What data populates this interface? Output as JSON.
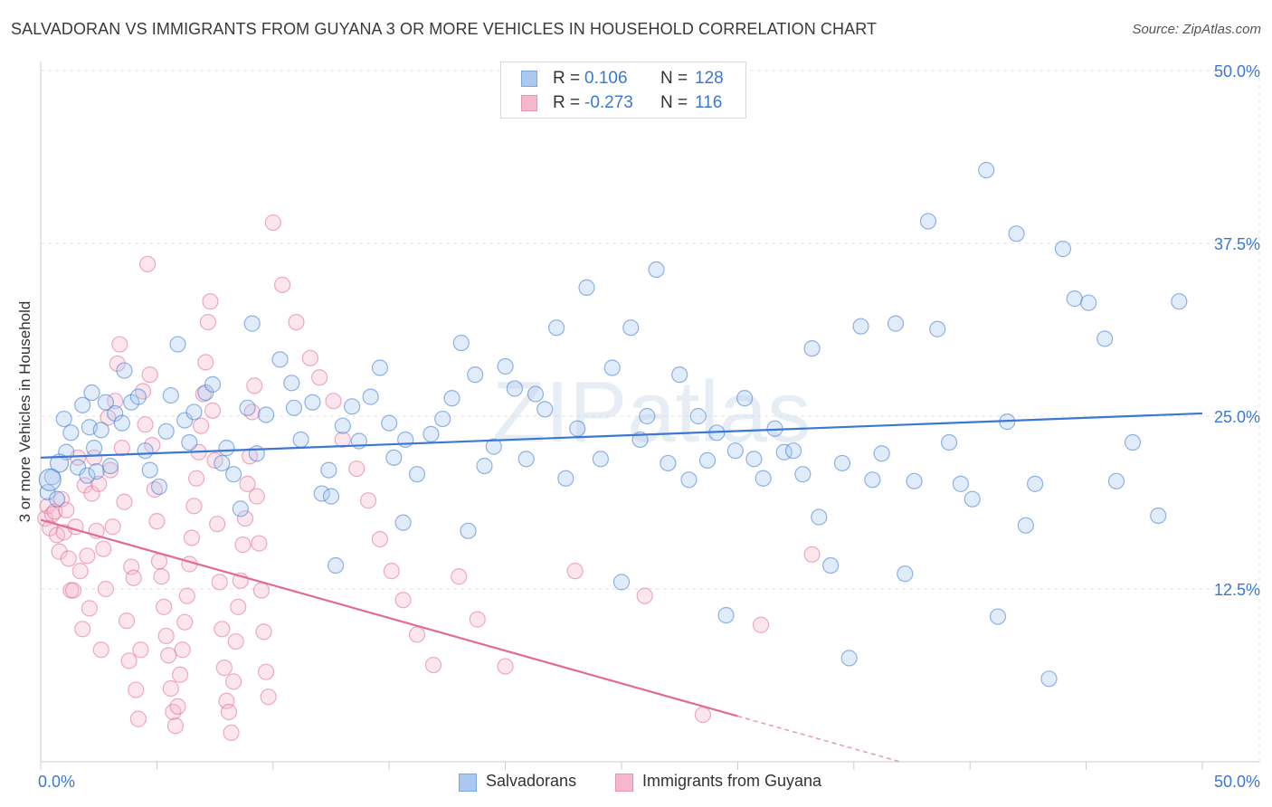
{
  "title": "SALVADORAN VS IMMIGRANTS FROM GUYANA 3 OR MORE VEHICLES IN HOUSEHOLD CORRELATION CHART",
  "source": "Source: ZipAtlas.com",
  "watermark": "ZIPatlas",
  "colors": {
    "blue": "#3b78d4",
    "blue_fill": "#aac8f0",
    "pink": "#e46a96",
    "pink_fill": "#f5b7cc",
    "grid": "#e3e3e3",
    "tick_label": "#3b78d4"
  },
  "legend": {
    "series1": {
      "r_label": "R =",
      "r_value": "0.106",
      "n_label": "N =",
      "n_value": "128"
    },
    "series2": {
      "r_label": "R =",
      "r_value": "-0.273",
      "n_label": "N =",
      "n_value": "116"
    }
  },
  "bottom_legend": {
    "series1": "Salvadorans",
    "series2": "Immigrants from Guyana"
  },
  "chart_data": {
    "type": "scatter",
    "title": "SALVADORAN VS IMMIGRANTS FROM GUYANA 3 OR MORE VEHICLES IN HOUSEHOLD CORRELATION CHART",
    "xlabel": "",
    "ylabel": "3 or more Vehicles in Household",
    "xlim": [
      0,
      50
    ],
    "ylim": [
      0,
      50
    ],
    "x_tick_labels": [
      "0.0%",
      "50.0%"
    ],
    "y_ticks": [
      12.5,
      25.0,
      37.5,
      50.0
    ],
    "y_tick_labels": [
      "12.5%",
      "25.0%",
      "37.5%",
      "50.0%"
    ],
    "grid": true,
    "legend_position": "top-center",
    "series": [
      {
        "name": "Salvadorans",
        "r": 0.106,
        "n": 128,
        "trend": {
          "x": [
            0,
            50
          ],
          "y": [
            22.0,
            25.2
          ]
        },
        "points": [
          [
            0.3,
            19.5
          ],
          [
            0.5,
            20.6
          ],
          [
            0.7,
            19.0
          ],
          [
            1.0,
            24.8
          ],
          [
            1.1,
            22.4
          ],
          [
            1.3,
            23.8
          ],
          [
            1.6,
            21.3
          ],
          [
            1.8,
            25.8
          ],
          [
            2.0,
            20.7
          ],
          [
            2.1,
            24.2
          ],
          [
            2.2,
            26.7
          ],
          [
            2.3,
            22.7
          ],
          [
            2.4,
            21.0
          ],
          [
            2.6,
            24.0
          ],
          [
            2.8,
            26.0
          ],
          [
            3.0,
            21.4
          ],
          [
            3.2,
            25.2
          ],
          [
            3.5,
            24.5
          ],
          [
            3.6,
            28.3
          ],
          [
            3.9,
            26.0
          ],
          [
            4.2,
            26.4
          ],
          [
            4.5,
            22.5
          ],
          [
            4.7,
            21.1
          ],
          [
            5.1,
            19.9
          ],
          [
            5.4,
            23.9
          ],
          [
            5.6,
            26.5
          ],
          [
            5.9,
            30.2
          ],
          [
            6.2,
            24.7
          ],
          [
            6.4,
            23.1
          ],
          [
            6.6,
            25.3
          ],
          [
            7.1,
            26.7
          ],
          [
            7.4,
            27.3
          ],
          [
            7.8,
            21.6
          ],
          [
            8.0,
            22.7
          ],
          [
            8.3,
            20.8
          ],
          [
            8.6,
            18.3
          ],
          [
            8.9,
            25.6
          ],
          [
            9.1,
            31.7
          ],
          [
            9.3,
            22.3
          ],
          [
            9.7,
            25.1
          ],
          [
            10.3,
            29.1
          ],
          [
            10.8,
            27.4
          ],
          [
            10.9,
            25.6
          ],
          [
            11.2,
            23.3
          ],
          [
            11.7,
            26.0
          ],
          [
            12.1,
            19.4
          ],
          [
            12.4,
            21.1
          ],
          [
            12.5,
            19.2
          ],
          [
            12.7,
            14.2
          ],
          [
            13.0,
            24.3
          ],
          [
            13.4,
            25.7
          ],
          [
            13.7,
            23.2
          ],
          [
            14.2,
            26.4
          ],
          [
            14.6,
            28.5
          ],
          [
            15.0,
            24.5
          ],
          [
            15.2,
            22.0
          ],
          [
            15.6,
            17.3
          ],
          [
            15.7,
            23.3
          ],
          [
            16.2,
            20.8
          ],
          [
            16.8,
            23.7
          ],
          [
            17.3,
            24.8
          ],
          [
            17.7,
            26.3
          ],
          [
            18.1,
            30.3
          ],
          [
            18.4,
            16.7
          ],
          [
            18.7,
            28.0
          ],
          [
            19.1,
            21.4
          ],
          [
            19.5,
            22.8
          ],
          [
            20.0,
            28.6
          ],
          [
            20.4,
            27.0
          ],
          [
            20.9,
            21.9
          ],
          [
            21.3,
            26.6
          ],
          [
            21.7,
            25.5
          ],
          [
            22.2,
            31.4
          ],
          [
            22.6,
            20.5
          ],
          [
            23.1,
            24.1
          ],
          [
            23.5,
            34.3
          ],
          [
            24.1,
            21.9
          ],
          [
            24.6,
            28.5
          ],
          [
            25.0,
            13.0
          ],
          [
            25.4,
            31.4
          ],
          [
            25.8,
            23.3
          ],
          [
            26.1,
            25.0
          ],
          [
            26.5,
            35.6
          ],
          [
            27.0,
            21.6
          ],
          [
            27.5,
            28.0
          ],
          [
            27.9,
            20.4
          ],
          [
            28.3,
            25.0
          ],
          [
            28.7,
            21.8
          ],
          [
            29.1,
            23.8
          ],
          [
            29.5,
            10.6
          ],
          [
            29.9,
            22.5
          ],
          [
            30.3,
            26.3
          ],
          [
            30.7,
            21.9
          ],
          [
            31.1,
            20.5
          ],
          [
            31.6,
            24.1
          ],
          [
            32.0,
            22.4
          ],
          [
            32.4,
            22.5
          ],
          [
            32.8,
            20.8
          ],
          [
            33.2,
            29.9
          ],
          [
            33.5,
            17.7
          ],
          [
            34.0,
            14.2
          ],
          [
            34.5,
            21.6
          ],
          [
            34.8,
            7.5
          ],
          [
            35.3,
            31.5
          ],
          [
            35.8,
            20.4
          ],
          [
            36.2,
            22.3
          ],
          [
            36.8,
            31.7
          ],
          [
            37.2,
            13.6
          ],
          [
            37.6,
            20.3
          ],
          [
            38.2,
            39.1
          ],
          [
            38.6,
            31.3
          ],
          [
            39.1,
            23.1
          ],
          [
            39.6,
            20.1
          ],
          [
            40.1,
            19.0
          ],
          [
            40.7,
            42.8
          ],
          [
            41.2,
            10.5
          ],
          [
            41.6,
            24.6
          ],
          [
            42.0,
            38.2
          ],
          [
            42.4,
            17.1
          ],
          [
            42.8,
            20.1
          ],
          [
            43.4,
            6.0
          ],
          [
            44.0,
            37.1
          ],
          [
            44.5,
            33.5
          ],
          [
            45.1,
            33.2
          ],
          [
            45.8,
            30.6
          ],
          [
            46.3,
            20.3
          ],
          [
            47.0,
            23.1
          ],
          [
            48.1,
            17.8
          ],
          [
            49.0,
            33.3
          ]
        ]
      },
      {
        "name": "Immigrants from Guyana",
        "r": -0.273,
        "n": 116,
        "trend": {
          "x": [
            0,
            30
          ],
          "y": [
            17.5,
            3.3
          ]
        },
        "trend_dashed": {
          "x": [
            30,
            37
          ],
          "y": [
            3.3,
            0.0
          ]
        },
        "points": [
          [
            0.2,
            17.6
          ],
          [
            0.3,
            18.5
          ],
          [
            0.4,
            16.9
          ],
          [
            0.5,
            17.9
          ],
          [
            0.6,
            18.1
          ],
          [
            0.7,
            16.4
          ],
          [
            0.8,
            15.2
          ],
          [
            0.9,
            19.0
          ],
          [
            1.0,
            16.6
          ],
          [
            1.1,
            18.2
          ],
          [
            1.2,
            14.7
          ],
          [
            1.3,
            12.4
          ],
          [
            1.4,
            12.4
          ],
          [
            1.5,
            17.0
          ],
          [
            1.6,
            22.0
          ],
          [
            1.7,
            13.8
          ],
          [
            1.8,
            9.6
          ],
          [
            1.9,
            20.0
          ],
          [
            2.0,
            14.9
          ],
          [
            2.1,
            11.1
          ],
          [
            2.2,
            19.4
          ],
          [
            2.3,
            22.0
          ],
          [
            2.4,
            16.7
          ],
          [
            2.5,
            20.1
          ],
          [
            2.6,
            8.1
          ],
          [
            2.7,
            15.4
          ],
          [
            2.8,
            12.5
          ],
          [
            2.9,
            24.9
          ],
          [
            3.0,
            21.1
          ],
          [
            3.1,
            17.0
          ],
          [
            3.2,
            26.1
          ],
          [
            3.3,
            28.8
          ],
          [
            3.4,
            30.2
          ],
          [
            3.5,
            22.7
          ],
          [
            3.6,
            18.8
          ],
          [
            3.7,
            10.2
          ],
          [
            3.8,
            7.3
          ],
          [
            3.9,
            14.1
          ],
          [
            4.0,
            13.3
          ],
          [
            4.1,
            5.2
          ],
          [
            4.2,
            3.1
          ],
          [
            4.3,
            8.1
          ],
          [
            4.4,
            26.8
          ],
          [
            4.5,
            24.4
          ],
          [
            4.6,
            36.0
          ],
          [
            4.7,
            28.0
          ],
          [
            4.8,
            22.9
          ],
          [
            4.9,
            19.7
          ],
          [
            5.0,
            17.4
          ],
          [
            5.1,
            14.5
          ],
          [
            5.2,
            13.4
          ],
          [
            5.3,
            11.2
          ],
          [
            5.4,
            9.1
          ],
          [
            5.5,
            7.7
          ],
          [
            5.6,
            5.3
          ],
          [
            5.7,
            3.6
          ],
          [
            5.8,
            2.6
          ],
          [
            5.9,
            4.0
          ],
          [
            6.0,
            6.3
          ],
          [
            6.1,
            8.1
          ],
          [
            6.2,
            10.1
          ],
          [
            6.3,
            12.0
          ],
          [
            6.4,
            14.3
          ],
          [
            6.5,
            16.2
          ],
          [
            6.6,
            18.5
          ],
          [
            6.7,
            20.5
          ],
          [
            6.8,
            22.4
          ],
          [
            6.9,
            24.3
          ],
          [
            7.0,
            26.6
          ],
          [
            7.1,
            28.9
          ],
          [
            7.2,
            31.8
          ],
          [
            7.3,
            33.3
          ],
          [
            7.4,
            25.4
          ],
          [
            7.5,
            21.8
          ],
          [
            7.6,
            17.2
          ],
          [
            7.7,
            13.0
          ],
          [
            7.8,
            9.6
          ],
          [
            7.9,
            6.8
          ],
          [
            8.0,
            4.4
          ],
          [
            8.1,
            3.6
          ],
          [
            8.2,
            2.1
          ],
          [
            8.3,
            5.8
          ],
          [
            8.4,
            8.7
          ],
          [
            8.5,
            11.2
          ],
          [
            8.6,
            13.1
          ],
          [
            8.7,
            15.7
          ],
          [
            8.8,
            17.6
          ],
          [
            8.9,
            20.1
          ],
          [
            9.0,
            22.1
          ],
          [
            9.1,
            25.3
          ],
          [
            9.2,
            27.2
          ],
          [
            9.3,
            19.2
          ],
          [
            9.4,
            15.8
          ],
          [
            9.5,
            12.4
          ],
          [
            9.6,
            9.4
          ],
          [
            9.7,
            6.5
          ],
          [
            9.8,
            4.7
          ],
          [
            10.0,
            39.0
          ],
          [
            10.4,
            34.5
          ],
          [
            11.0,
            31.8
          ],
          [
            11.6,
            29.2
          ],
          [
            12.0,
            27.8
          ],
          [
            12.6,
            26.1
          ],
          [
            13.0,
            23.3
          ],
          [
            13.6,
            21.2
          ],
          [
            14.1,
            18.9
          ],
          [
            14.6,
            16.1
          ],
          [
            15.1,
            13.8
          ],
          [
            15.6,
            11.7
          ],
          [
            16.2,
            9.2
          ],
          [
            16.9,
            7.0
          ],
          [
            18.0,
            13.4
          ],
          [
            18.8,
            10.3
          ],
          [
            20.0,
            6.9
          ],
          [
            23.0,
            13.8
          ],
          [
            26.0,
            12.0
          ],
          [
            28.5,
            3.4
          ],
          [
            31.0,
            9.9
          ],
          [
            33.2,
            15.0
          ]
        ]
      }
    ]
  }
}
